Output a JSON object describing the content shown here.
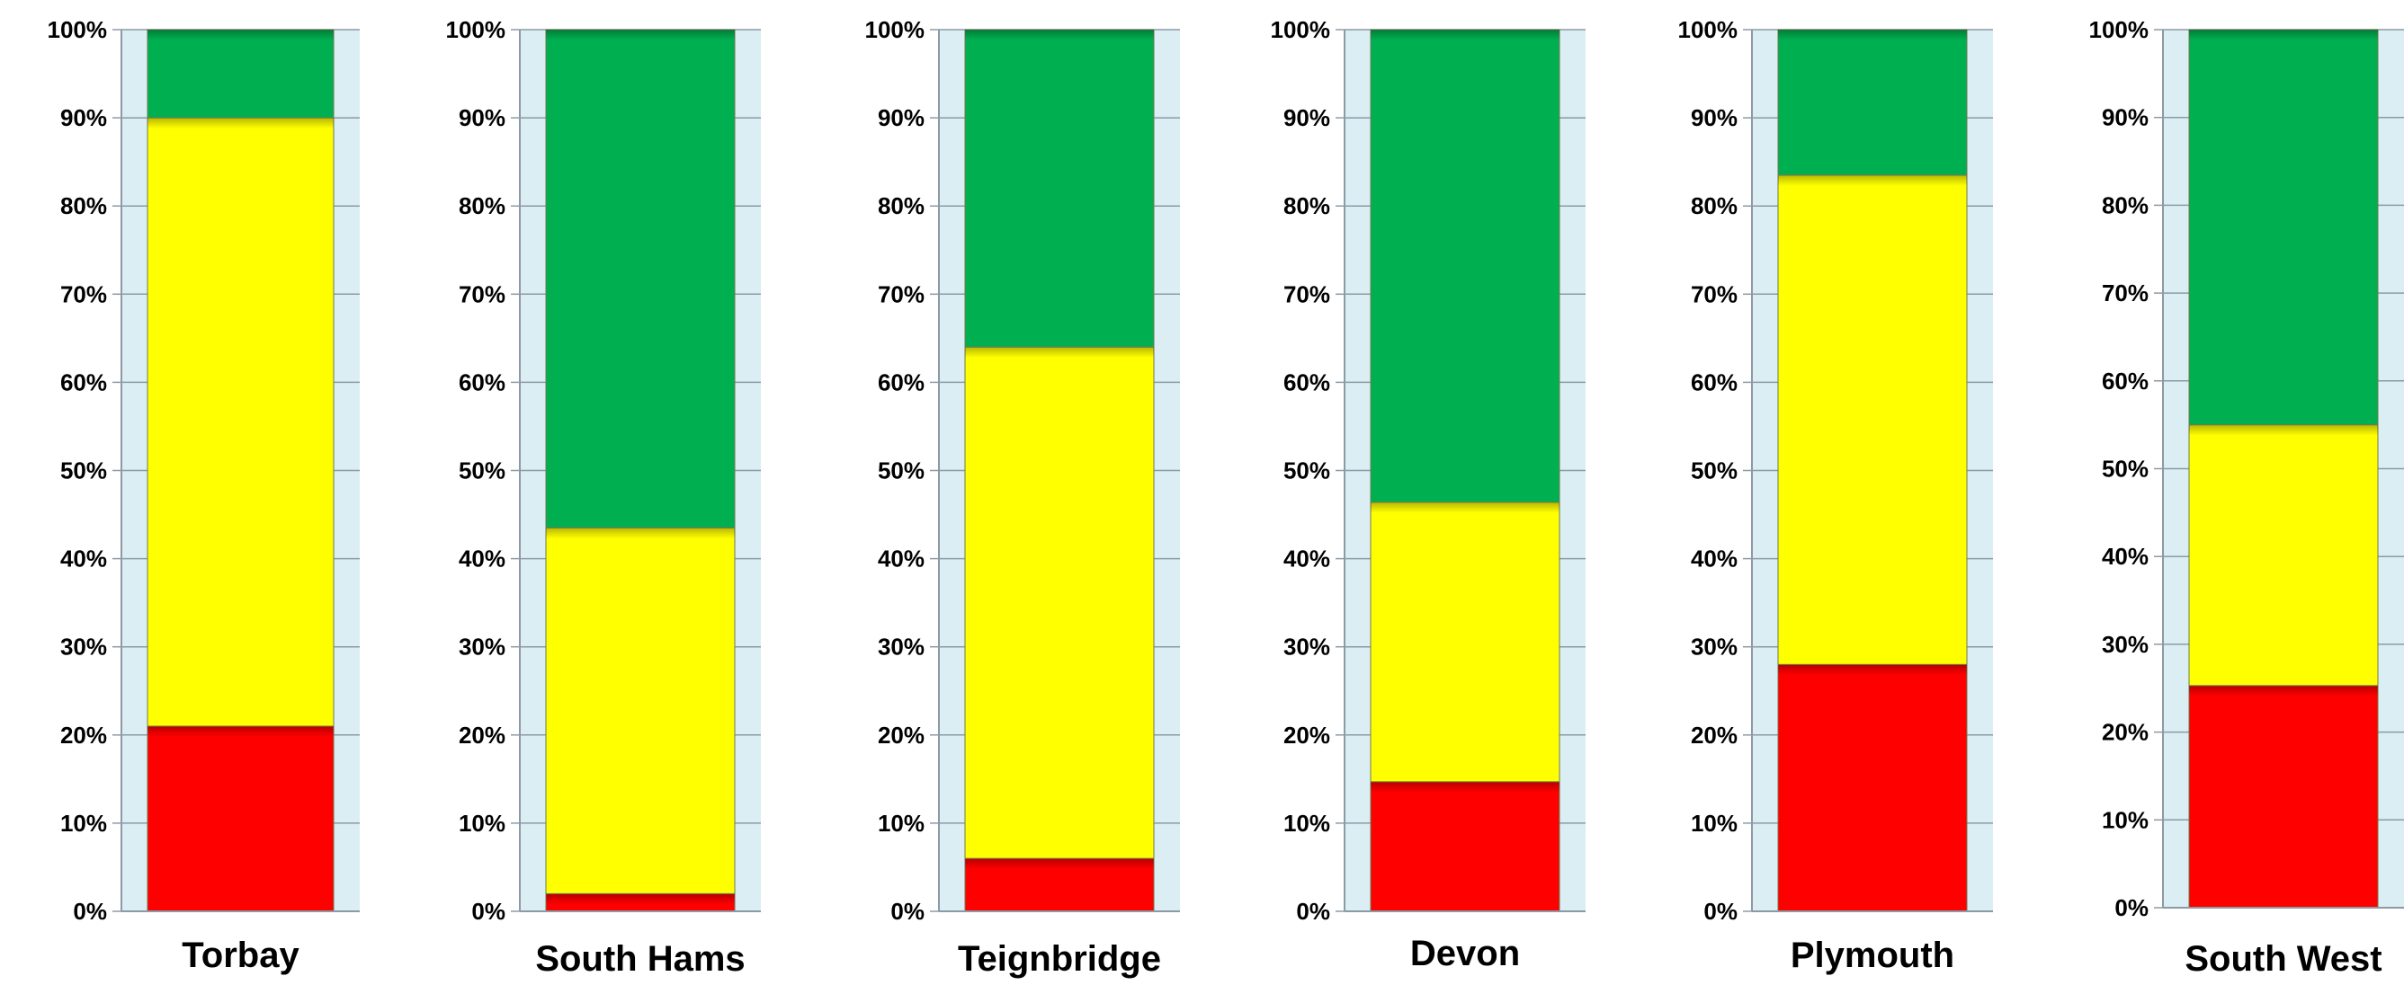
{
  "chart_data": [
    {
      "type": "bar",
      "stacked": true,
      "title": "Torbay",
      "categories": [
        "Torbay"
      ],
      "series": [
        {
          "color": "#ff0000",
          "values": [
            21
          ]
        },
        {
          "color": "#ffff00",
          "values": [
            69
          ]
        },
        {
          "color": "#00b050",
          "values": [
            10
          ]
        }
      ],
      "ylim": [
        0,
        100
      ],
      "y_ticks": [
        "0%",
        "10%",
        "20%",
        "30%",
        "40%",
        "50%",
        "60%",
        "70%",
        "80%",
        "90%",
        "100%"
      ],
      "grid": true,
      "plot_background": "#dbeef4"
    },
    {
      "type": "bar",
      "stacked": true,
      "title": "South Hams",
      "categories": [
        "South Hams"
      ],
      "series": [
        {
          "color": "#ff0000",
          "values": [
            2
          ]
        },
        {
          "color": "#ffff00",
          "values": [
            41.5
          ]
        },
        {
          "color": "#00b050",
          "values": [
            56.5
          ]
        }
      ],
      "ylim": [
        0,
        100
      ],
      "y_ticks": [
        "0%",
        "10%",
        "20%",
        "30%",
        "40%",
        "50%",
        "60%",
        "70%",
        "80%",
        "90%",
        "100%"
      ],
      "grid": true,
      "plot_background": "#dbeef4"
    },
    {
      "type": "bar",
      "stacked": true,
      "title": "Teignbridge",
      "categories": [
        "Teignbridge"
      ],
      "series": [
        {
          "color": "#ff0000",
          "values": [
            6
          ]
        },
        {
          "color": "#ffff00",
          "values": [
            58
          ]
        },
        {
          "color": "#00b050",
          "values": [
            36
          ]
        }
      ],
      "ylim": [
        0,
        100
      ],
      "y_ticks": [
        "0%",
        "10%",
        "20%",
        "30%",
        "40%",
        "50%",
        "60%",
        "70%",
        "80%",
        "90%",
        "100%"
      ],
      "grid": true,
      "plot_background": "#dbeef4"
    },
    {
      "type": "bar",
      "stacked": true,
      "title": "Devon",
      "categories": [
        "Devon"
      ],
      "series": [
        {
          "color": "#ff0000",
          "values": [
            14.7
          ]
        },
        {
          "color": "#ffff00",
          "values": [
            31.7
          ]
        },
        {
          "color": "#00b050",
          "values": [
            53.6
          ]
        }
      ],
      "ylim": [
        0,
        100
      ],
      "y_ticks": [
        "0%",
        "10%",
        "20%",
        "30%",
        "40%",
        "50%",
        "60%",
        "70%",
        "80%",
        "90%",
        "100%"
      ],
      "grid": true,
      "plot_background": "#dbeef4"
    },
    {
      "type": "bar",
      "stacked": true,
      "title": "Plymouth",
      "categories": [
        "Plymouth"
      ],
      "series": [
        {
          "color": "#ff0000",
          "values": [
            28
          ]
        },
        {
          "color": "#ffff00",
          "values": [
            55.5
          ]
        },
        {
          "color": "#00b050",
          "values": [
            16.5
          ]
        }
      ],
      "ylim": [
        0,
        100
      ],
      "y_ticks": [
        "0%",
        "10%",
        "20%",
        "30%",
        "40%",
        "50%",
        "60%",
        "70%",
        "80%",
        "90%",
        "100%"
      ],
      "grid": true,
      "plot_background": "#dbeef4"
    },
    {
      "type": "bar",
      "stacked": true,
      "title": "South West",
      "categories": [
        "South West"
      ],
      "series": [
        {
          "color": "#ff0000",
          "values": [
            25.3
          ]
        },
        {
          "color": "#ffff00",
          "values": [
            29.7
          ]
        },
        {
          "color": "#00b050",
          "values": [
            45
          ]
        }
      ],
      "ylim": [
        0,
        100
      ],
      "y_ticks": [
        "0%",
        "10%",
        "20%",
        "30%",
        "40%",
        "50%",
        "60%",
        "70%",
        "80%",
        "90%",
        "100%"
      ],
      "grid": true,
      "plot_background": "#dbeef4"
    }
  ]
}
